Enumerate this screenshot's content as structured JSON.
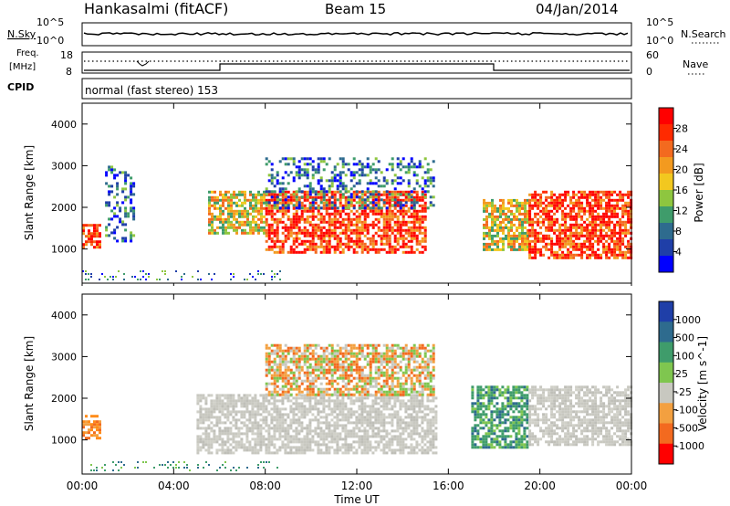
{
  "header": {
    "station": "Hankasalmi (fitACF)",
    "beam": "Beam 15",
    "date": "04/Jan/2014"
  },
  "top_panels": {
    "nsky_label": "N.Sky",
    "nsky_ticks": [
      "10^5",
      "10^0"
    ],
    "nsearch_label": "N.Search",
    "nsearch_ticks": [
      "10^5",
      "10^0"
    ],
    "freq_label_1": "Freq.",
    "freq_label_2": "[MHz]",
    "freq_ticks": [
      "18",
      "8"
    ],
    "nave_label": "Nave",
    "nave_ticks": [
      "60",
      "0"
    ],
    "cpid_label": "CPID",
    "cpid_text": "normal (fast stereo) 153"
  },
  "chart_data": [
    {
      "type": "heatmap",
      "name": "power",
      "xlabel": "",
      "ylabel": "Slant Range [km]",
      "ylim": [
        180,
        4500
      ],
      "y_ticks": [
        "4000",
        "3000",
        "2000",
        "1000"
      ],
      "colorbar_label": "Power [dB]",
      "colorbar_ticks": [
        "28",
        "24",
        "20",
        "16",
        "12",
        "8",
        "4"
      ],
      "colorbar_colors": [
        "#0000ff",
        "#1f3fa8",
        "#2e6b8e",
        "#3f9c6b",
        "#8ec63f",
        "#f2c81f",
        "#f39a1f",
        "#f36a1f",
        "#ff2a00",
        "#ff0000"
      ],
      "echo_regions": [
        {
          "t_start": 0.0,
          "t_end": 0.8,
          "r_low": 1050,
          "r_high": 1600,
          "power": "high"
        },
        {
          "t_start": 1.0,
          "t_end": 2.2,
          "r_low": 1200,
          "r_high": 3000,
          "power": "low"
        },
        {
          "t_start": 5.5,
          "t_end": 8.0,
          "r_low": 1400,
          "r_high": 2400,
          "power": "medium"
        },
        {
          "t_start": 8.0,
          "t_end": 15.0,
          "r_low": 900,
          "r_high": 2400,
          "power": "high"
        },
        {
          "t_start": 8.0,
          "t_end": 15.3,
          "r_low": 2000,
          "r_high": 3200,
          "power": "low"
        },
        {
          "t_start": 17.5,
          "t_end": 19.5,
          "r_low": 1000,
          "r_high": 2200,
          "power": "medium"
        },
        {
          "t_start": 19.5,
          "t_end": 24.0,
          "r_low": 800,
          "r_high": 2400,
          "power": "high"
        }
      ]
    },
    {
      "type": "heatmap",
      "name": "velocity",
      "xlabel": "Time UT",
      "ylabel": "Slant Range [km]",
      "ylim": [
        180,
        4500
      ],
      "y_ticks": [
        "4000",
        "3000",
        "2000",
        "1000"
      ],
      "x_ticks": [
        "00:00",
        "04:00",
        "08:00",
        "12:00",
        "16:00",
        "20:00",
        "00:00"
      ],
      "colorbar_label": "Velocity [m s^-1]",
      "colorbar_ticks": [
        "1000",
        "500",
        "100",
        "25",
        "-25",
        "-100",
        "-500",
        "-1000"
      ],
      "colorbar_colors": [
        "#1f3fa8",
        "#2e6b8e",
        "#3f9c6b",
        "#7fc64f",
        "#c8c8c0",
        "#f3a040",
        "#f36a1f",
        "#ff0000"
      ],
      "echo_regions": [
        {
          "t_start": 0.0,
          "t_end": 0.8,
          "r_low": 1050,
          "r_high": 1600,
          "velocity": "negative"
        },
        {
          "t_start": 5.0,
          "t_end": 15.5,
          "r_low": 700,
          "r_high": 2100,
          "velocity": "near_zero"
        },
        {
          "t_start": 8.0,
          "t_end": 15.3,
          "r_low": 2100,
          "r_high": 3300,
          "velocity": "mixed"
        },
        {
          "t_start": 17.0,
          "t_end": 19.5,
          "r_low": 800,
          "r_high": 2300,
          "velocity": "positive"
        },
        {
          "t_start": 19.5,
          "t_end": 24.0,
          "r_low": 900,
          "r_high": 2300,
          "velocity": "near_zero"
        }
      ]
    }
  ]
}
